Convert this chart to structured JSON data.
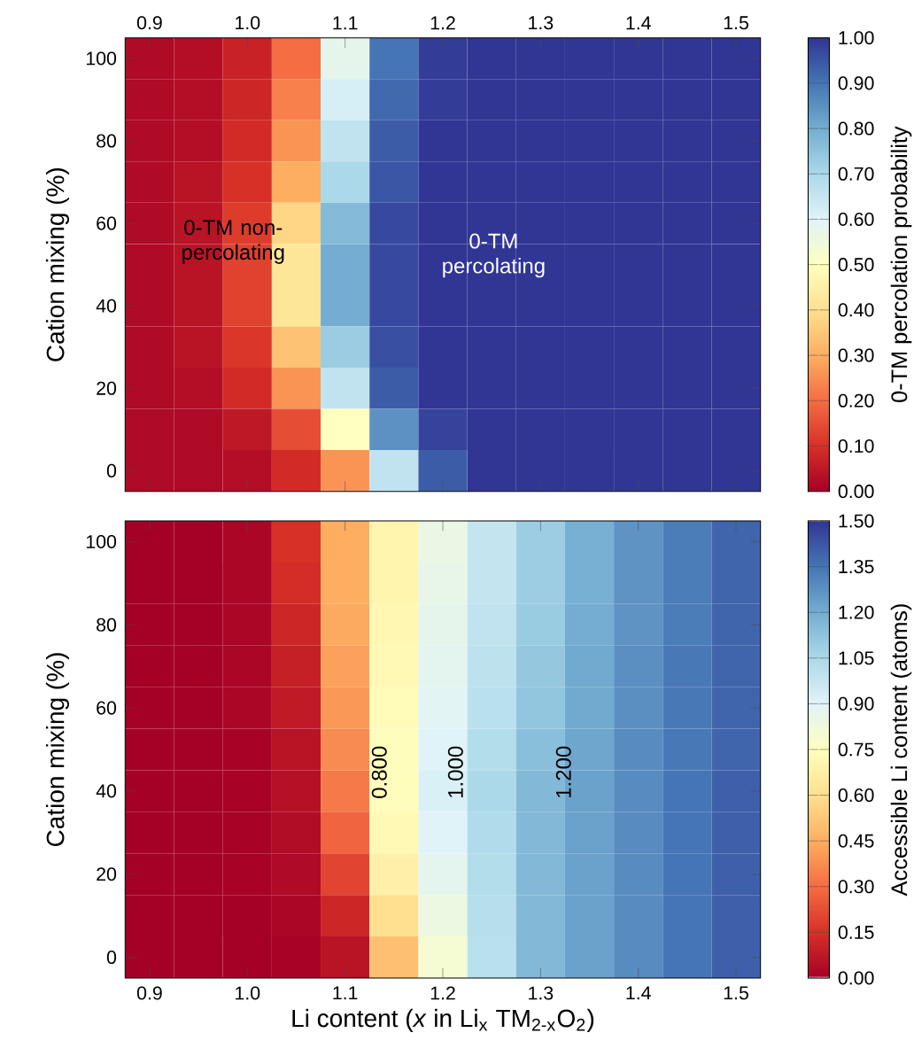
{
  "chart_data": [
    {
      "type": "heatmap",
      "ylabel": "Cation mixing (%)",
      "clabel": "0-TM percolation probability",
      "categories": [
        "0.9",
        null,
        "1.0",
        null,
        "1.1",
        null,
        "1.2",
        null,
        "1.3",
        null,
        "1.4",
        null,
        "1.5"
      ],
      "y_categories": [
        "100",
        null,
        "80",
        null,
        "60",
        null,
        "40",
        null,
        "20",
        null,
        "0"
      ],
      "cells": [
        [
          0.02,
          0.03,
          0.07,
          0.2,
          0.58,
          0.9,
          0.99,
          1.0,
          1.0,
          1.0,
          1.0,
          1.0,
          1.0
        ],
        [
          0.02,
          0.03,
          0.08,
          0.23,
          0.62,
          0.92,
          0.99,
          1.0,
          1.0,
          1.0,
          1.0,
          1.0,
          1.0
        ],
        [
          0.02,
          0.03,
          0.09,
          0.26,
          0.66,
          0.94,
          1.0,
          1.0,
          1.0,
          1.0,
          1.0,
          1.0,
          1.0
        ],
        [
          0.02,
          0.04,
          0.1,
          0.3,
          0.7,
          0.95,
          1.0,
          1.0,
          1.0,
          1.0,
          1.0,
          1.0,
          1.0
        ],
        [
          0.02,
          0.04,
          0.12,
          0.38,
          0.77,
          0.97,
          1.0,
          1.0,
          1.0,
          1.0,
          1.0,
          1.0,
          1.0
        ],
        [
          0.02,
          0.04,
          0.13,
          0.42,
          0.8,
          0.97,
          1.0,
          1.0,
          1.0,
          1.0,
          1.0,
          1.0,
          1.0
        ],
        [
          0.02,
          0.04,
          0.13,
          0.42,
          0.8,
          0.97,
          1.0,
          1.0,
          1.0,
          1.0,
          1.0,
          1.0,
          1.0
        ],
        [
          0.02,
          0.04,
          0.11,
          0.34,
          0.73,
          0.96,
          1.0,
          1.0,
          1.0,
          1.0,
          1.0,
          1.0,
          1.0
        ],
        [
          0.02,
          0.03,
          0.09,
          0.26,
          0.66,
          0.94,
          1.0,
          1.0,
          1.0,
          1.0,
          1.0,
          1.0,
          1.0
        ],
        [
          0.02,
          0.02,
          0.05,
          0.15,
          0.5,
          0.85,
          0.98,
          1.0,
          1.0,
          1.0,
          1.0,
          1.0,
          1.0
        ],
        [
          0.02,
          0.02,
          0.03,
          0.09,
          0.26,
          0.66,
          0.94,
          1.0,
          1.0,
          1.0,
          1.0,
          1.0,
          1.0
        ]
      ],
      "clim": [
        0,
        1
      ],
      "cticks": [
        {
          "value": 0,
          "label": "0.00"
        },
        {
          "value": 0.1,
          "label": "0.10"
        },
        {
          "value": 0.2,
          "label": "0.20"
        },
        {
          "value": 0.3,
          "label": "0.30"
        },
        {
          "value": 0.4,
          "label": "0.40"
        },
        {
          "value": 0.5,
          "label": "0.50"
        },
        {
          "value": 0.6,
          "label": "0.60"
        },
        {
          "value": 0.7,
          "label": "0.70"
        },
        {
          "value": 0.8,
          "label": "0.80"
        },
        {
          "value": 0.9,
          "label": "0.90"
        },
        {
          "value": 1,
          "label": "1.00"
        }
      ],
      "annotations": [
        "0-TM non-percolating",
        "0-TM percolating"
      ]
    },
    {
      "type": "heatmap",
      "xlabel": "Li content (*x* in Li$_{x}$ TM$_{2-x}$O$_{2}$)",
      "ylabel": "Cation mixing (%)",
      "clabel": "Accessible Li content (atoms)",
      "categories": [
        "0.9",
        null,
        "1.0",
        null,
        "1.1",
        null,
        "1.2",
        null,
        "1.3",
        null,
        "1.4",
        null,
        "1.5"
      ],
      "y_categories": [
        "100",
        null,
        "80",
        null,
        "60",
        null,
        "40",
        null,
        "20",
        null,
        "0"
      ],
      "cells": [
        [
          0,
          0,
          0.02,
          0.15,
          0.45,
          0.7,
          0.85,
          0.98,
          1.09,
          1.19,
          1.27,
          1.33,
          1.39
        ],
        [
          0,
          0,
          0.02,
          0.14,
          0.45,
          0.7,
          0.86,
          0.98,
          1.09,
          1.19,
          1.27,
          1.33,
          1.39
        ],
        [
          0,
          0,
          0.02,
          0.12,
          0.44,
          0.71,
          0.87,
          0.99,
          1.1,
          1.2,
          1.27,
          1.33,
          1.39
        ],
        [
          0,
          0,
          0.02,
          0.1,
          0.42,
          0.72,
          0.88,
          1.0,
          1.11,
          1.21,
          1.28,
          1.34,
          1.39
        ],
        [
          0,
          0,
          0.02,
          0.08,
          0.4,
          0.73,
          0.89,
          1.01,
          1.12,
          1.21,
          1.28,
          1.34,
          1.39
        ],
        [
          0,
          0,
          0.01,
          0.06,
          0.37,
          0.74,
          0.9,
          1.03,
          1.14,
          1.22,
          1.29,
          1.34,
          1.39
        ],
        [
          0,
          0,
          0.01,
          0.05,
          0.33,
          0.74,
          0.92,
          1.05,
          1.16,
          1.23,
          1.29,
          1.35,
          1.4
        ],
        [
          0,
          0,
          0.01,
          0.04,
          0.28,
          0.72,
          0.9,
          1.04,
          1.16,
          1.23,
          1.29,
          1.35,
          1.4
        ],
        [
          0,
          0,
          0.01,
          0.03,
          0.2,
          0.68,
          0.88,
          1.03,
          1.16,
          1.23,
          1.29,
          1.35,
          1.4
        ],
        [
          0,
          0,
          0,
          0.02,
          0.12,
          0.6,
          0.84,
          1.02,
          1.16,
          1.23,
          1.29,
          1.35,
          1.4
        ],
        [
          0,
          0,
          0,
          0.01,
          0.06,
          0.5,
          0.8,
          1.01,
          1.16,
          1.23,
          1.29,
          1.35,
          1.4
        ]
      ],
      "clim": [
        0,
        1.5
      ],
      "cticks": [
        {
          "value": 0,
          "label": "0.00"
        },
        {
          "value": 0.15,
          "label": "0.15"
        },
        {
          "value": 0.3,
          "label": "0.30"
        },
        {
          "value": 0.45,
          "label": "0.45"
        },
        {
          "value": 0.6,
          "label": "0.60"
        },
        {
          "value": 0.75,
          "label": "0.75"
        },
        {
          "value": 0.9,
          "label": "0.90"
        },
        {
          "value": 1.05,
          "label": "1.05"
        },
        {
          "value": 1.2,
          "label": "1.20"
        },
        {
          "value": 1.35,
          "label": "1.35"
        },
        {
          "value": 1.5,
          "label": "1.50"
        }
      ],
      "annotations": [
        "0.800",
        "1.000",
        "1.200"
      ]
    }
  ]
}
